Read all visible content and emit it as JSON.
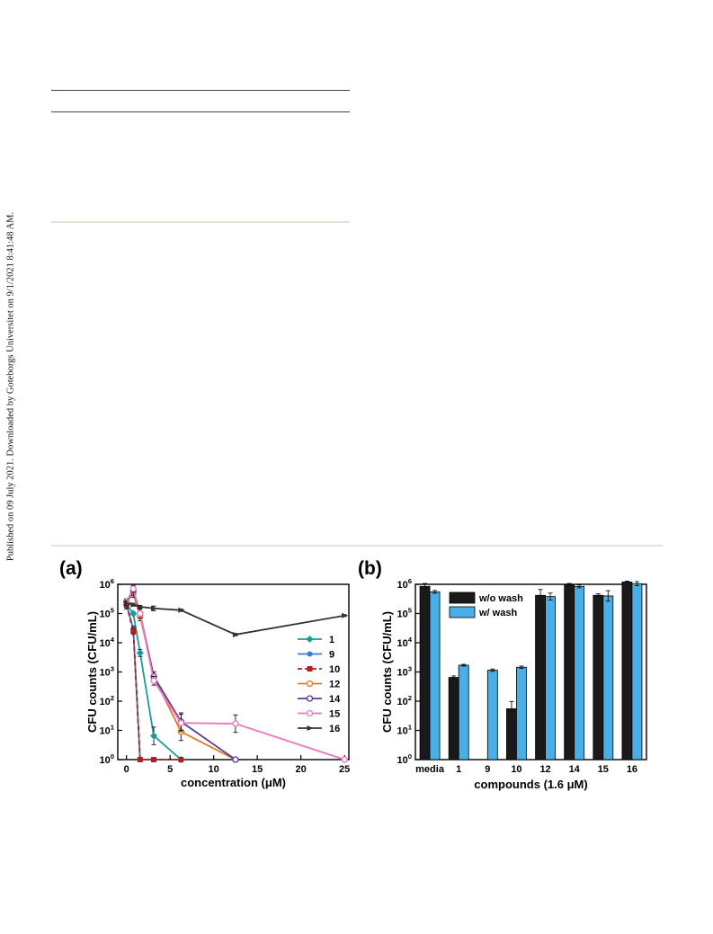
{
  "side_note": "Published on 09 July 2021. Downloaded by Goteborgs Universitet on 9/1/2021 8:41:48 AM.",
  "colors": {
    "series_1": "#1a9a9a",
    "series_9": "#3a7bc8",
    "series_10": "#b01e23",
    "series_12": "#e07b28",
    "series_14": "#5a3a9e",
    "series_15": "#ee79b8",
    "series_16": "#333333",
    "bar_wo_wash": "#1a1a1a",
    "bar_w_wash": "#49afe6"
  },
  "chart_data": [
    {
      "type": "line",
      "panel_label": "(a)",
      "xlabel": "concentration (μM)",
      "ylabel": "CFU counts (CFU/mL)",
      "xlim": [
        -1,
        25.5
      ],
      "ylim": [
        1,
        1000000
      ],
      "yscale": "log",
      "xticks": [
        "0",
        "5",
        "10",
        "15",
        "20",
        "25"
      ],
      "yticks": [
        "10^0",
        "10^1",
        "10^2",
        "10^3",
        "10^4",
        "10^5",
        "10^6"
      ],
      "grid": false,
      "legend": "right",
      "series": [
        {
          "name": "1",
          "x": [
            0,
            0.78,
            1.56,
            3.13,
            6.25
          ],
          "y": [
            200000,
            100000,
            4500,
            6.5,
            1
          ],
          "err": [
            0.15,
            0.05,
            0.12,
            0.3,
            0
          ]
        },
        {
          "name": "9",
          "x": [
            0,
            0.78,
            1.56
          ],
          "y": [
            200000,
            30000,
            1
          ],
          "err": [
            0.1,
            0.1,
            0
          ]
        },
        {
          "name": "10",
          "x": [
            0,
            0.78,
            1.56,
            3.13,
            6.25
          ],
          "y": [
            200000,
            25000,
            1,
            1,
            1
          ],
          "err": [
            0.1,
            0.1,
            0,
            0,
            0
          ]
        },
        {
          "name": "12",
          "x": [
            0,
            0.78,
            1.56,
            3.13,
            6.25,
            12.5
          ],
          "y": [
            250000,
            500000,
            80000,
            700,
            9,
            1
          ],
          "err": [
            0.1,
            0.15,
            0.15,
            0.15,
            0.3,
            0
          ]
        },
        {
          "name": "14",
          "x": [
            0,
            0.78,
            1.56,
            3.13,
            6.25,
            12.5
          ],
          "y": [
            250000,
            600000,
            100000,
            700,
            20,
            1
          ],
          "err": [
            0.1,
            0.15,
            0.15,
            0.15,
            0.3,
            0
          ]
        },
        {
          "name": "15",
          "x": [
            0,
            0.78,
            1.56,
            3.13,
            6.25,
            12.5,
            25
          ],
          "y": [
            250000,
            700000,
            100000,
            500,
            18,
            17,
            1
          ],
          "err": [
            0.1,
            0.12,
            0.15,
            0.15,
            0.3,
            0.3,
            0
          ]
        },
        {
          "name": "16",
          "x": [
            0,
            0.78,
            1.56,
            3.13,
            6.25,
            12.5,
            25
          ],
          "y": [
            230000,
            200000,
            170000,
            150000,
            130000,
            19000,
            85000
          ],
          "err": [
            0.08,
            0.05,
            0.05,
            0.08,
            0.04,
            0.04,
            0.03
          ]
        }
      ]
    },
    {
      "type": "bar",
      "panel_label": "(b)",
      "xlabel": "compounds (1.6 μM)",
      "ylabel": "CFU counts (CFU/mL)",
      "yscale": "log",
      "ylim": [
        1,
        1000000
      ],
      "yticks": [
        "10^0",
        "10^1",
        "10^2",
        "10^3",
        "10^4",
        "10^5",
        "10^6"
      ],
      "categories": [
        "media",
        "1",
        "9",
        "10",
        "12",
        "14",
        "15",
        "16"
      ],
      "legend": "top-left",
      "series": [
        {
          "name": "w/o wash",
          "values": [
            850000,
            650,
            1,
            55,
            420000,
            1000000,
            420000,
            1200000
          ],
          "err": [
            0.1,
            0.05,
            0,
            0.25,
            0.2,
            0.03,
            0.05,
            0.03
          ]
        },
        {
          "name": "w/ wash",
          "values": [
            550000,
            1700,
            1150,
            1450,
            380000,
            850000,
            400000,
            1050000
          ],
          "err": [
            0.05,
            0.03,
            0.04,
            0.04,
            0.12,
            0.05,
            0.18,
            0.07
          ]
        }
      ]
    }
  ]
}
